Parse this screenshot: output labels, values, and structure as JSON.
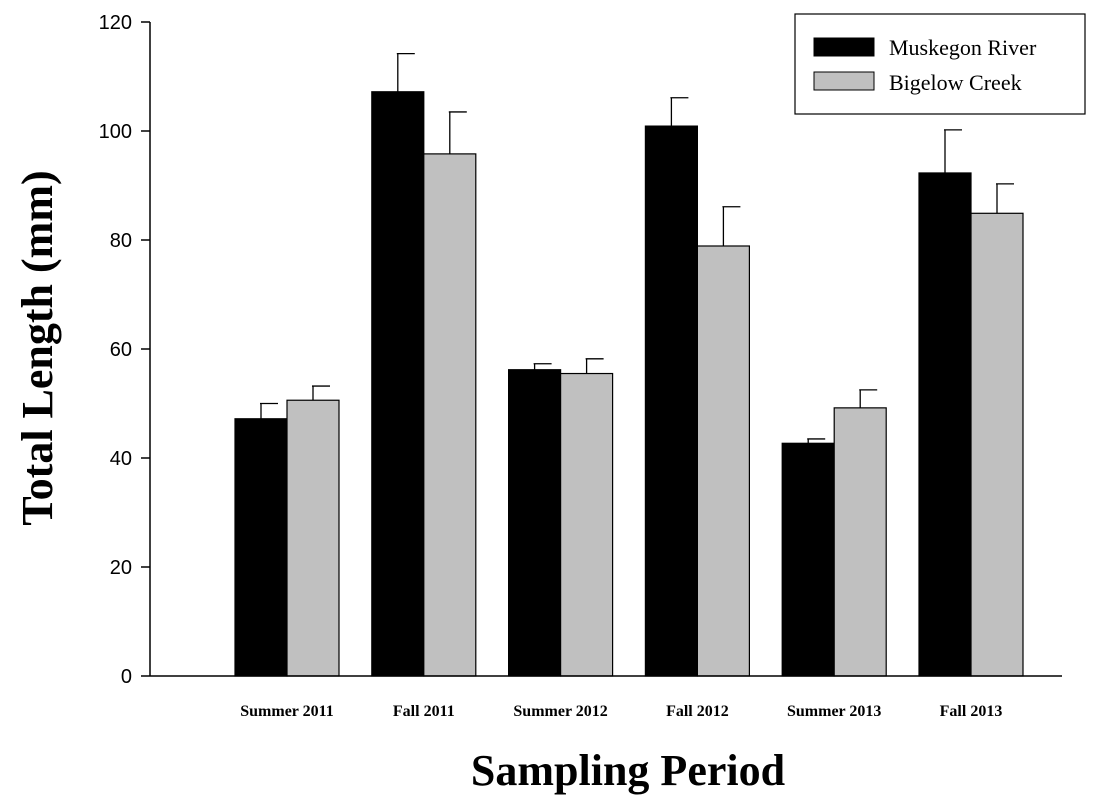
{
  "chart_data": {
    "type": "bar",
    "title": "",
    "xlabel": "Sampling Period",
    "ylabel": "Total Length (mm)",
    "ylim": [
      0,
      120
    ],
    "yticks": [
      0,
      20,
      40,
      60,
      80,
      100,
      120
    ],
    "grid": false,
    "legend_position": "top-right",
    "categories": [
      "Summer 2011",
      "Fall 2011",
      "Summer 2012",
      "Fall 2012",
      "Summer 2013",
      "Fall 2013"
    ],
    "series": [
      {
        "name": "Muskegon River",
        "color": "#000000",
        "values": [
          47.2,
          107.2,
          56.2,
          100.9,
          42.7,
          92.3
        ],
        "error_upper": [
          2.8,
          7.0,
          1.1,
          5.2,
          0.8,
          7.9
        ]
      },
      {
        "name": "Bigelow Creek",
        "color": "#c0c0c0",
        "values": [
          50.6,
          95.8,
          55.5,
          78.9,
          49.2,
          84.9
        ],
        "error_upper": [
          2.6,
          7.7,
          2.7,
          7.2,
          3.3,
          5.4
        ]
      }
    ]
  }
}
